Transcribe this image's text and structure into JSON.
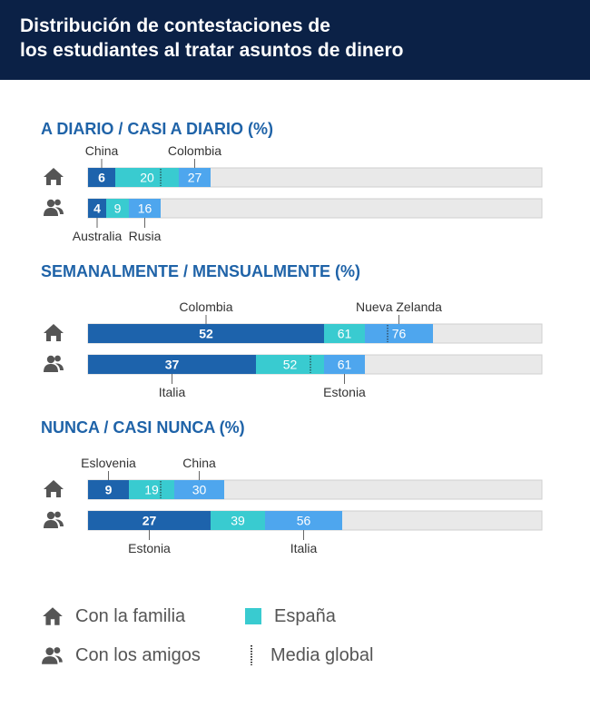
{
  "title": "Distribución de contestaciones de\nlos estudiantes al tratar asuntos de dinero",
  "colors": {
    "header_bg": "#0b2146",
    "section_title": "#1f63a8",
    "track": "#e9e9e9",
    "min_segment": "#1d63ac",
    "spain_segment": "#39cbd0",
    "max_segment": "#4ea6ee",
    "icon": "#555555"
  },
  "chart_data": {
    "type": "bar",
    "xlim": [
      0,
      100
    ],
    "unit": "%",
    "sections": [
      {
        "title": "A DIARIO / CASI A DIARIO (%)",
        "rows": [
          {
            "group": "Con la familia",
            "icon": "house-icon",
            "min": 6,
            "min_country": "China",
            "spain": 20,
            "max": 27,
            "max_country": "Colombia",
            "average": 16
          },
          {
            "group": "Con los amigos",
            "icon": "people-icon",
            "min": 4,
            "min_country": "Australia",
            "spain": 9,
            "max": 16,
            "max_country": "Rusia",
            "average": null
          }
        ]
      },
      {
        "title": "SEMANALMENTE / MENSUALMENTE (%)",
        "rows": [
          {
            "group": "Con la familia",
            "icon": "house-icon",
            "min": 52,
            "min_country": "Colombia",
            "spain": 61,
            "max": 76,
            "max_country": "Nueva Zelanda",
            "average": 66
          },
          {
            "group": "Con los amigos",
            "icon": "people-icon",
            "min": 37,
            "min_country": "Italia",
            "spain": 52,
            "max": 61,
            "max_country": "Estonia",
            "average": 49
          }
        ]
      },
      {
        "title": "NUNCA / CASI NUNCA (%)",
        "rows": [
          {
            "group": "Con la familia",
            "icon": "house-icon",
            "min": 9,
            "min_country": "Eslovenia",
            "spain": 19,
            "max": 30,
            "max_country": "China",
            "average": 16
          },
          {
            "group": "Con los amigos",
            "icon": "people-icon",
            "min": 27,
            "min_country": "Estonia",
            "spain": 39,
            "max": 56,
            "max_country": "Italia",
            "average": null
          }
        ]
      }
    ]
  },
  "legend": {
    "family": "Con la familia",
    "friends": "Con los amigos",
    "spain": "España",
    "average": "Media global"
  }
}
